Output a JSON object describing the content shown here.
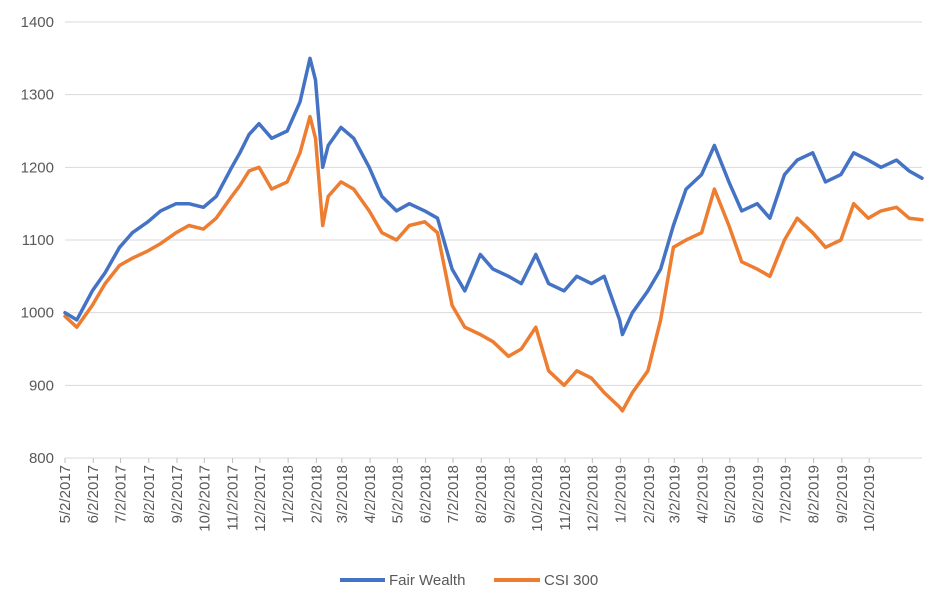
{
  "chart_data": {
    "type": "line",
    "title": "",
    "xlabel": "",
    "ylabel": "",
    "ylim": [
      800,
      1400
    ],
    "y_ticks": [
      "800",
      "900",
      "1000",
      "1100",
      "1200",
      "1300",
      "1400"
    ],
    "x_tick_labels": [
      "5/2/2017",
      "6/2/2017",
      "7/2/2017",
      "8/2/2017",
      "9/2/2017",
      "10/2/2017",
      "11/2/2017",
      "12/2/2017",
      "1/2/2018",
      "2/2/2018",
      "3/2/2018",
      "4/2/2018",
      "5/2/2018",
      "6/2/2018",
      "7/2/2018",
      "8/2/2018",
      "9/2/2018",
      "10/2/2018",
      "11/2/2018",
      "12/2/2018",
      "1/2/2019",
      "2/2/2019",
      "3/2/2019",
      "4/2/2019",
      "5/2/2019",
      "6/2/2019",
      "7/2/2019",
      "8/2/2019",
      "9/2/2019",
      "10/2/2019"
    ],
    "grid": "horizontal",
    "legend_position": "bottom",
    "x_dates": [
      "2017-05-02",
      "2017-05-15",
      "2017-06-01",
      "2017-06-15",
      "2017-07-01",
      "2017-07-15",
      "2017-08-01",
      "2017-08-15",
      "2017-09-01",
      "2017-09-15",
      "2017-10-01",
      "2017-10-15",
      "2017-11-01",
      "2017-11-10",
      "2017-11-20",
      "2017-12-01",
      "2017-12-15",
      "2018-01-01",
      "2018-01-15",
      "2018-01-26",
      "2018-02-01",
      "2018-02-09",
      "2018-02-15",
      "2018-03-01",
      "2018-03-15",
      "2018-04-01",
      "2018-04-15",
      "2018-05-01",
      "2018-05-15",
      "2018-06-01",
      "2018-06-15",
      "2018-07-01",
      "2018-07-15",
      "2018-08-01",
      "2018-08-15",
      "2018-09-01",
      "2018-09-15",
      "2018-10-01",
      "2018-10-15",
      "2018-11-01",
      "2018-11-15",
      "2018-12-01",
      "2018-12-15",
      "2019-01-01",
      "2019-01-04",
      "2019-01-15",
      "2019-02-01",
      "2019-02-15",
      "2019-03-01",
      "2019-03-15",
      "2019-04-01",
      "2019-04-15",
      "2019-05-01",
      "2019-05-15",
      "2019-06-01",
      "2019-06-15",
      "2019-07-01",
      "2019-07-15",
      "2019-08-01",
      "2019-08-15",
      "2019-09-01",
      "2019-09-15",
      "2019-10-01",
      "2019-10-15",
      "2019-11-01",
      "2019-11-15",
      "2019-11-29"
    ],
    "series": [
      {
        "name": "Fair Wealth",
        "color": "#4472C4",
        "values": [
          1000,
          990,
          1030,
          1055,
          1090,
          1110,
          1125,
          1140,
          1150,
          1150,
          1145,
          1160,
          1200,
          1220,
          1245,
          1260,
          1240,
          1250,
          1290,
          1350,
          1320,
          1200,
          1230,
          1255,
          1240,
          1200,
          1160,
          1140,
          1150,
          1140,
          1130,
          1060,
          1030,
          1080,
          1060,
          1050,
          1040,
          1080,
          1040,
          1030,
          1050,
          1040,
          1050,
          990,
          970,
          1000,
          1030,
          1060,
          1120,
          1170,
          1190,
          1230,
          1180,
          1140,
          1150,
          1130,
          1190,
          1210,
          1220,
          1180,
          1190,
          1220,
          1210,
          1200,
          1210,
          1195,
          1185
        ]
      },
      {
        "name": "CSI 300",
        "color": "#ED7D31",
        "values": [
          995,
          980,
          1010,
          1040,
          1065,
          1075,
          1085,
          1095,
          1110,
          1120,
          1115,
          1130,
          1160,
          1175,
          1195,
          1200,
          1170,
          1180,
          1220,
          1270,
          1240,
          1120,
          1160,
          1180,
          1170,
          1140,
          1110,
          1100,
          1120,
          1125,
          1110,
          1010,
          980,
          970,
          960,
          940,
          950,
          980,
          920,
          900,
          920,
          910,
          890,
          870,
          865,
          890,
          920,
          990,
          1090,
          1100,
          1110,
          1170,
          1120,
          1070,
          1060,
          1050,
          1100,
          1130,
          1110,
          1090,
          1100,
          1150,
          1130,
          1140,
          1145,
          1130,
          1128
        ]
      }
    ]
  }
}
